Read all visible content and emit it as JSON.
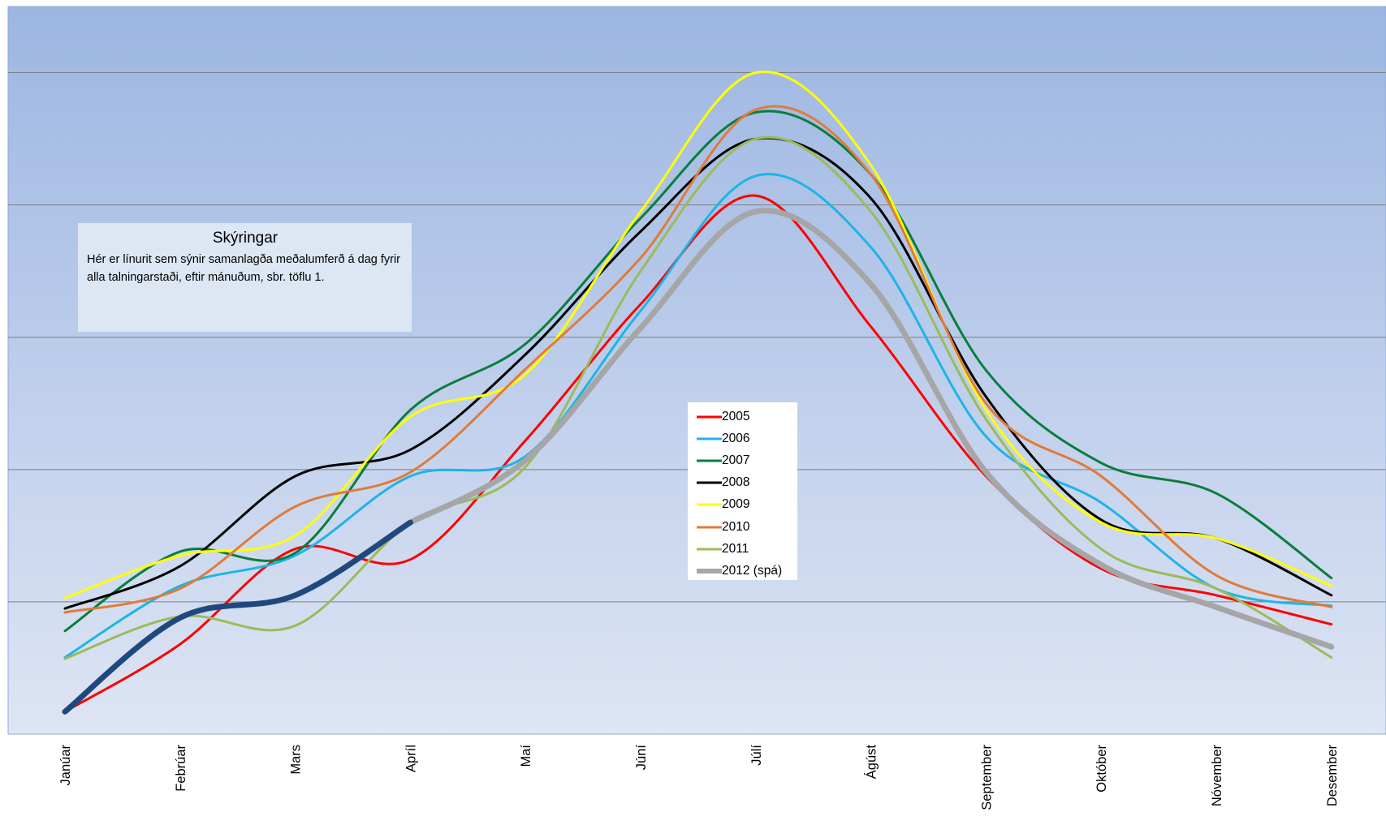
{
  "chart_data": {
    "type": "line",
    "title": "",
    "xlabel": "",
    "ylabel": "",
    "categories": [
      "Janúar",
      "Febrúar",
      "Mars",
      "Apríl",
      "Maí",
      "Júní",
      "Júlí",
      "Ágúst",
      "September",
      "Október",
      "Nóvember",
      "Desember"
    ],
    "ylim": [
      0,
      5.5
    ],
    "grid": true,
    "legend_position": "center",
    "series": [
      {
        "name": "2005",
        "color": "#ff0000",
        "width": 3,
        "values": [
          0.17,
          0.68,
          1.4,
          1.32,
          2.22,
          3.25,
          4.07,
          3.08,
          1.95,
          1.25,
          1.05,
          0.83
        ]
      },
      {
        "name": "2006",
        "color": "#1eb4e6",
        "width": 3,
        "values": [
          0.58,
          1.12,
          1.35,
          1.95,
          2.1,
          3.2,
          4.22,
          3.68,
          2.25,
          1.75,
          1.1,
          0.97
        ]
      },
      {
        "name": "2007",
        "color": "#0a7d3c",
        "width": 3,
        "values": [
          0.78,
          1.38,
          1.37,
          2.45,
          2.95,
          3.9,
          4.7,
          4.23,
          2.75,
          2.05,
          1.82,
          1.18
        ]
      },
      {
        "name": "2008",
        "color": "#000000",
        "width": 3,
        "values": [
          0.95,
          1.27,
          1.95,
          2.15,
          2.87,
          3.8,
          4.5,
          4.05,
          2.55,
          1.62,
          1.48,
          1.05
        ]
      },
      {
        "name": "2009",
        "color": "#ffff00",
        "width": 3,
        "values": [
          1.03,
          1.35,
          1.5,
          2.4,
          2.72,
          3.95,
          5.0,
          4.3,
          2.45,
          1.6,
          1.48,
          1.12
        ]
      },
      {
        "name": "2010",
        "color": "#e07b39",
        "width": 3,
        "values": [
          0.92,
          1.1,
          1.72,
          1.98,
          2.76,
          3.6,
          4.72,
          4.23,
          2.5,
          1.95,
          1.2,
          0.96
        ]
      },
      {
        "name": "2011",
        "color": "#9bbb59",
        "width": 3,
        "values": [
          0.57,
          0.89,
          0.82,
          1.6,
          2.02,
          3.5,
          4.5,
          3.95,
          2.38,
          1.4,
          1.1,
          0.58
        ]
      },
      {
        "name": "2012 (spá)",
        "color": "#a6a6a6",
        "width": 7,
        "values": [
          null,
          null,
          null,
          1.6,
          2.07,
          3.07,
          3.95,
          3.4,
          1.98,
          1.28,
          0.96,
          0.66
        ]
      },
      {
        "name": "",
        "color": "#1f497d",
        "width": 7,
        "values": [
          0.17,
          0.88,
          1.05,
          1.6,
          null,
          null,
          null,
          null,
          null,
          null,
          null,
          null
        ]
      }
    ]
  },
  "annotation": {
    "title": "Skýringar",
    "body": "Hér er línurit sem sýnir samanlagða meðalumferð  á dag  fyrir alla talningarstaði, eftir mánuðum, sbr. töflu 1."
  },
  "colors": {
    "plot_top": "#9cb6e2",
    "plot_bottom": "#dee5f4",
    "gridline": "#7f7f7f",
    "plot_border": "#8eaadb"
  }
}
